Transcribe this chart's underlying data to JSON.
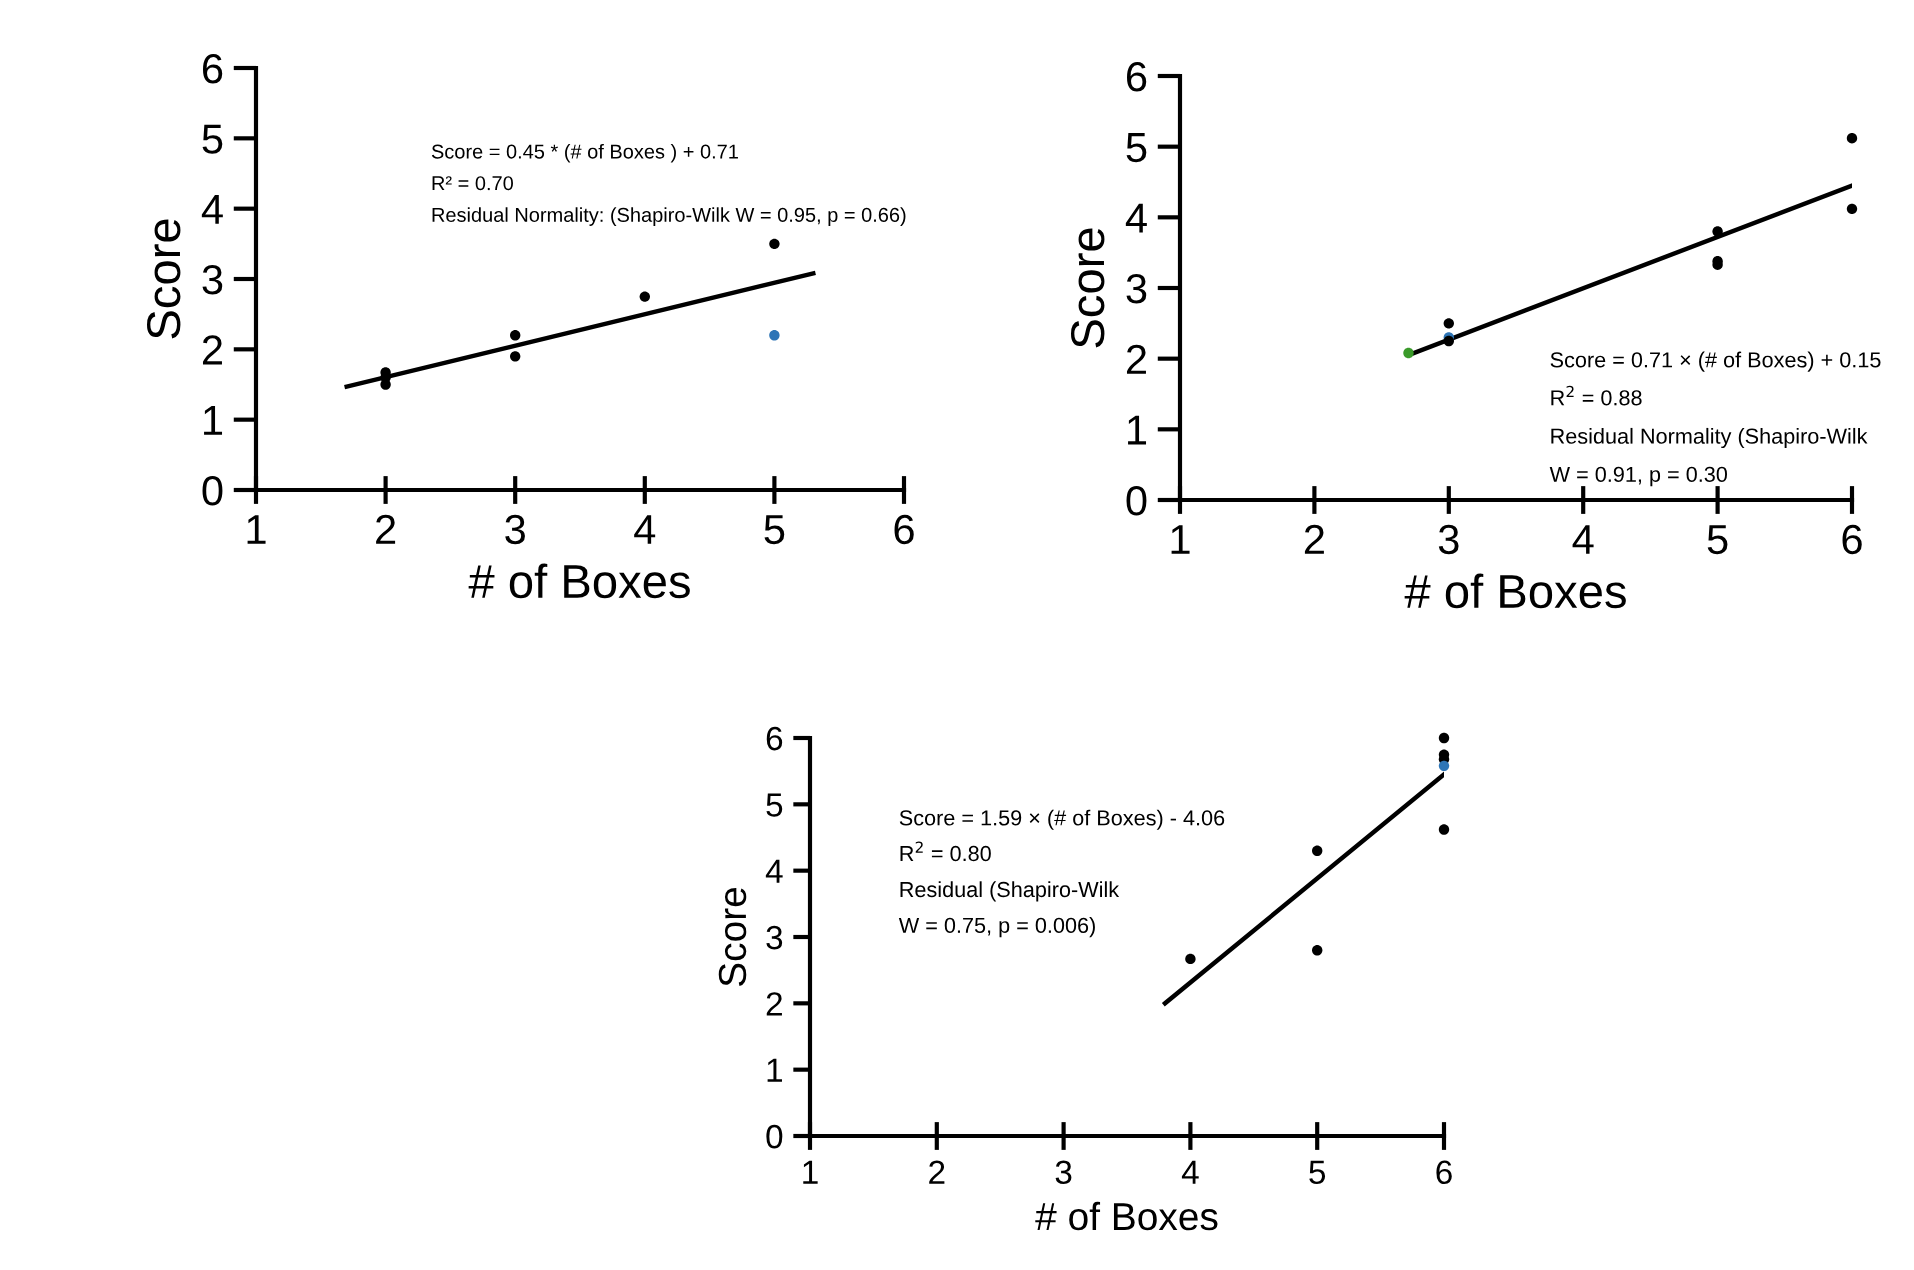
{
  "chart_data": [
    {
      "type": "scatter",
      "xlabel": "# of Boxes",
      "ylabel": "Score",
      "xlim": [
        1,
        6
      ],
      "ylim": [
        0,
        6
      ],
      "xticks": [
        1,
        2,
        3,
        4,
        5,
        6
      ],
      "yticks": [
        0,
        1,
        2,
        3,
        4,
        5,
        6
      ],
      "grid": false,
      "legend": false,
      "marker": "circle",
      "annotations": [
        "Score = 0.45 * (# of Boxes ) + 0.71",
        "R² = 0.70",
        "Residual Normality: (Shapiro-Wilk W = 0.95, p = 0.66)"
      ],
      "series": [
        {
          "type": "scatter",
          "x": [
            2,
            2,
            2,
            3,
            3,
            4,
            5,
            5
          ],
          "values": [
            1.5,
            1.6,
            1.67,
            2.2,
            1.9,
            2.75,
            3.5,
            2.2
          ],
          "color": "#000000",
          "colors": [
            "#000000",
            "#000000",
            "#000000",
            "#000000",
            "#000000",
            "#000000",
            "#000000",
            "#2e75b6"
          ]
        },
        {
          "type": "line",
          "x": [
            1.7,
            5.3
          ],
          "values": [
            1.47,
            3.08
          ],
          "color": "#000000",
          "line_style": "solid",
          "marker": "none"
        }
      ]
    },
    {
      "type": "scatter",
      "xlabel": "# of Boxes",
      "ylabel": "Score",
      "xlim": [
        1,
        6
      ],
      "ylim": [
        0,
        6
      ],
      "xticks": [
        1,
        2,
        3,
        4,
        5,
        6
      ],
      "yticks": [
        0,
        1,
        2,
        3,
        4,
        5,
        6
      ],
      "grid": false,
      "legend": false,
      "marker": "circle",
      "annotations": [
        "Score = 1.59 × (# of Boxes) - 4.06",
        "R$^{2}$ = 0.80",
        "Residual (Shapiro-Wilk",
        "W = 0.75, p = 0.006)"
      ],
      "series": [
        {
          "type": "scatter",
          "x": [
            4,
            5,
            5,
            6,
            6,
            6,
            6,
            6
          ],
          "values": [
            2.67,
            4.3,
            2.8,
            6.0,
            5.75,
            5.68,
            5.58,
            4.62
          ],
          "color": "#000000",
          "colors": [
            "#000000",
            "#000000",
            "#000000",
            "#000000",
            "#000000",
            "#000000",
            "#2e75b6",
            "#000000"
          ]
        },
        {
          "type": "line",
          "x": [
            3.8,
            6
          ],
          "values": [
            2.0,
            5.45
          ],
          "color": "#000000",
          "line_style": "solid",
          "marker": "none"
        }
      ]
    },
    {
      "type": "scatter",
      "xlabel": "# of Boxes",
      "ylabel": "Score",
      "xlim": [
        1,
        6
      ],
      "ylim": [
        0,
        6
      ],
      "xticks": [
        1,
        2,
        3,
        4,
        5,
        6
      ],
      "yticks": [
        0,
        1,
        2,
        3,
        4,
        5,
        6
      ],
      "grid": false,
      "legend": false,
      "marker": "circle",
      "annotations": [
        "Score = 0.71 × (# of Boxes) + 0.15",
        "R$^{2}$ = 0.88",
        "Residual Normality (Shapiro-Wilk",
        "W = 0.91, p = 0.30"
      ],
      "series": [
        {
          "type": "scatter",
          "x": [
            2.7,
            3,
            3,
            3,
            5,
            5,
            5,
            6,
            6
          ],
          "values": [
            2.08,
            2.5,
            2.3,
            2.25,
            3.8,
            3.38,
            3.33,
            5.12,
            4.12
          ],
          "color": "#000000",
          "colors": [
            "#3a9a2a",
            "#000000",
            "#2e75b6",
            "#000000",
            "#000000",
            "#000000",
            "#000000",
            "#000000",
            "#000000"
          ]
        },
        {
          "type": "line",
          "x": [
            2.7,
            6
          ],
          "values": [
            2.05,
            4.45
          ],
          "color": "#000000",
          "line_style": "solid",
          "marker": "none"
        }
      ]
    }
  ]
}
